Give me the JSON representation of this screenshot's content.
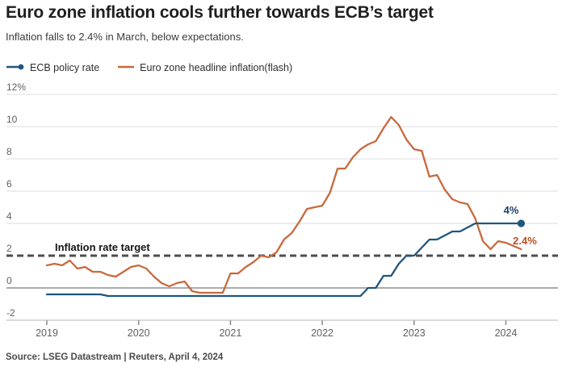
{
  "header": {
    "title": "Euro zone inflation cools further towards ECB’s target",
    "subtitle": "Inflation falls to 2.4% in March, below expectations."
  },
  "legend": {
    "items": [
      {
        "label": "ECB policy rate",
        "color": "#1f567e",
        "marker": "line-dot"
      },
      {
        "label": "Euro zone headline inflation(flash)",
        "color": "#c8693c",
        "marker": "line"
      }
    ]
  },
  "annotations": {
    "target_label": "Inflation rate target",
    "policy_end_label": "4%",
    "inflation_end_label": "2.4%"
  },
  "source": "Source: LSEG Datastream | Reuters, April 4, 2024",
  "chart_data": {
    "type": "line",
    "x_start": {
      "year": 2019,
      "month": 1
    },
    "x_end": {
      "year": 2024,
      "month": 3
    },
    "x_tick_years": [
      "2019",
      "2020",
      "2021",
      "2022",
      "2023",
      "2024"
    ],
    "y_ticks": [
      {
        "value": 12,
        "label": "12%"
      },
      {
        "value": 10,
        "label": "10"
      },
      {
        "value": 8,
        "label": "8"
      },
      {
        "value": 6,
        "label": "6"
      },
      {
        "value": 4,
        "label": "4"
      },
      {
        "value": 2,
        "label": "2"
      },
      {
        "value": 0,
        "label": "0"
      },
      {
        "value": -2,
        "label": "-2"
      }
    ],
    "ylim": [
      -2,
      12
    ],
    "grid": true,
    "legend_position": "top-left",
    "target_line_value": 2,
    "series": [
      {
        "name": "Euro zone headline inflation(flash)",
        "color": "#c8693c",
        "end_marker": "none",
        "end_value_label": "2.4%",
        "values": [
          1.4,
          1.5,
          1.4,
          1.7,
          1.2,
          1.3,
          1.0,
          1.0,
          0.8,
          0.7,
          1.0,
          1.3,
          1.4,
          1.2,
          0.7,
          0.3,
          0.1,
          0.3,
          0.4,
          -0.2,
          -0.3,
          -0.3,
          -0.3,
          -0.3,
          0.9,
          0.9,
          1.3,
          1.6,
          2.0,
          1.9,
          2.2,
          3.0,
          3.4,
          4.1,
          4.9,
          5.0,
          5.1,
          5.9,
          7.4,
          7.4,
          8.1,
          8.6,
          8.9,
          9.1,
          9.9,
          10.6,
          10.1,
          9.2,
          8.6,
          8.5,
          6.9,
          7.0,
          6.1,
          5.5,
          5.3,
          5.2,
          4.3,
          2.9,
          2.4,
          2.9,
          2.8,
          2.6,
          2.4
        ]
      },
      {
        "name": "ECB policy rate",
        "color": "#1f567e",
        "end_marker": "dot",
        "end_value_label": "4%",
        "values": [
          -0.4,
          -0.4,
          -0.4,
          -0.4,
          -0.4,
          -0.4,
          -0.4,
          -0.4,
          -0.5,
          -0.5,
          -0.5,
          -0.5,
          -0.5,
          -0.5,
          -0.5,
          -0.5,
          -0.5,
          -0.5,
          -0.5,
          -0.5,
          -0.5,
          -0.5,
          -0.5,
          -0.5,
          -0.5,
          -0.5,
          -0.5,
          -0.5,
          -0.5,
          -0.5,
          -0.5,
          -0.5,
          -0.5,
          -0.5,
          -0.5,
          -0.5,
          -0.5,
          -0.5,
          -0.5,
          -0.5,
          -0.5,
          -0.5,
          0.0,
          0.0,
          0.75,
          0.75,
          1.5,
          2.0,
          2.0,
          2.5,
          3.0,
          3.0,
          3.25,
          3.5,
          3.5,
          3.75,
          4.0,
          4.0,
          4.0,
          4.0,
          4.0,
          4.0,
          4.0
        ]
      }
    ],
    "colors": {
      "grid_line": "#dcdcdc",
      "zero_line": "#8f8f8f",
      "axis_line": "#b5b5b5",
      "target_dash": "#4d4d4d",
      "tick_text": "#5f5f5f"
    }
  }
}
